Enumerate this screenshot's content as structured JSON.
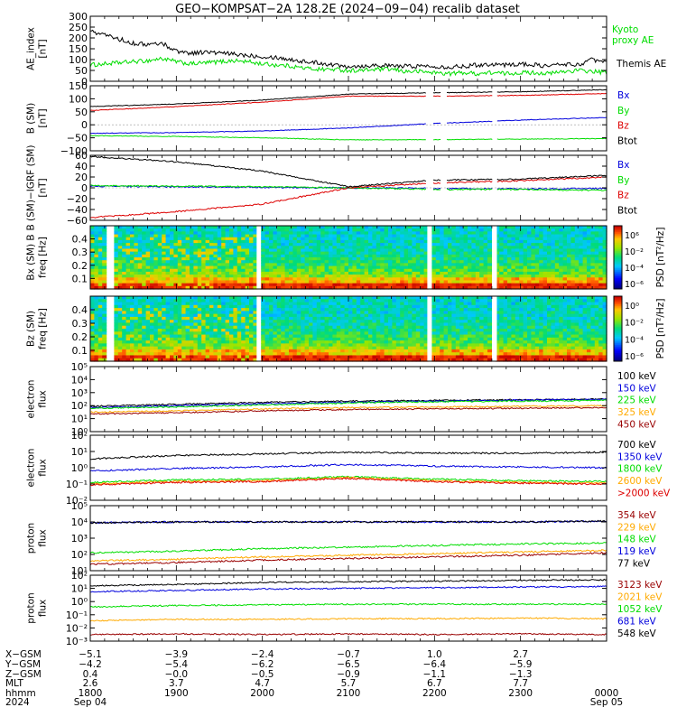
{
  "title": "GEO−KOMPSAT−2A 128.2E (2024−09−04) recalib dataset",
  "x_axis": {
    "row_labels": [
      "X−GSM",
      "Y−GSM",
      "Z−GSM",
      "MLT",
      "hhmm",
      "2024"
    ],
    "ticks": [
      {
        "t": 1800,
        "x_gsm": "−5.1",
        "y_gsm": "−4.2",
        "z_gsm": "0.4",
        "mlt": "2.6",
        "hhmm": "1800",
        "date": "Sep 04"
      },
      {
        "t": 1900,
        "x_gsm": "−3.9",
        "y_gsm": "−5.4",
        "z_gsm": "−0.0",
        "mlt": "3.7",
        "hhmm": "1900",
        "date": ""
      },
      {
        "t": 2000,
        "x_gsm": "−2.4",
        "y_gsm": "−6.2",
        "z_gsm": "−0.5",
        "mlt": "4.7",
        "hhmm": "2000",
        "date": ""
      },
      {
        "t": 2100,
        "x_gsm": "−0.7",
        "y_gsm": "−6.5",
        "z_gsm": "−0.9",
        "mlt": "5.7",
        "hhmm": "2100",
        "date": ""
      },
      {
        "t": 2200,
        "x_gsm": "1.0",
        "y_gsm": "−6.4",
        "z_gsm": "−1.1",
        "mlt": "6.7",
        "hhmm": "2200",
        "date": ""
      },
      {
        "t": 2300,
        "x_gsm": "2.7",
        "y_gsm": "−5.9",
        "z_gsm": "−1.3",
        "mlt": "7.7",
        "hhmm": "2300",
        "date": ""
      },
      {
        "t": 2400,
        "x_gsm": "",
        "y_gsm": "",
        "z_gsm": "",
        "mlt": "",
        "hhmm": "0000",
        "date": "Sep 05"
      }
    ]
  },
  "chart_data": [
    {
      "type": "line",
      "ylabel": "AE_index\n[nT]",
      "ylim": [
        0,
        300
      ],
      "yticks": [
        "0",
        "50",
        "100",
        "150",
        "200",
        "250",
        "300"
      ],
      "series": [
        {
          "name": "Kyoto\nproxy AE",
          "color": "#00dd00",
          "x": [
            1800,
            1810,
            1820,
            1830,
            1840,
            1850,
            1900,
            1910,
            1920,
            1930,
            1940,
            1950,
            2000,
            2010,
            2020,
            2030,
            2040,
            2050,
            2100,
            2110,
            2120,
            2130,
            2140,
            2150,
            2200,
            2210,
            2220,
            2230,
            2240,
            2250,
            2300,
            2310,
            2320,
            2330,
            2340,
            2350,
            2400
          ],
          "y": [
            75,
            80,
            85,
            90,
            95,
            105,
            90,
            80,
            85,
            90,
            95,
            90,
            80,
            75,
            70,
            60,
            55,
            55,
            50,
            50,
            55,
            55,
            45,
            45,
            40,
            35,
            40,
            35,
            40,
            35,
            40,
            40,
            35,
            45,
            50,
            45,
            40
          ]
        },
        {
          "name": "Themis AE",
          "color": "#000000",
          "x": [
            1800,
            1810,
            1820,
            1830,
            1840,
            1850,
            1900,
            1910,
            1920,
            1930,
            1940,
            1950,
            2000,
            2010,
            2020,
            2030,
            2040,
            2050,
            2100,
            2110,
            2120,
            2130,
            2140,
            2150,
            2200,
            2210,
            2220,
            2230,
            2240,
            2250,
            2300,
            2310,
            2320,
            2330,
            2340,
            2350,
            2400
          ],
          "y": [
            230,
            215,
            195,
            175,
            170,
            175,
            140,
            130,
            135,
            130,
            125,
            120,
            115,
            110,
            100,
            90,
            85,
            75,
            70,
            70,
            75,
            70,
            70,
            70,
            70,
            65,
            70,
            75,
            80,
            75,
            80,
            75,
            70,
            80,
            75,
            100,
            85
          ]
        }
      ]
    },
    {
      "type": "line",
      "ylabel": "B (SM)\n[nT]",
      "ylim": [
        -100,
        150
      ],
      "yticks": [
        "−100",
        "−50",
        "0",
        "50",
        "100",
        "150"
      ],
      "gaps": [
        [
          2155,
          2158
        ],
        [
          2205,
          2208
        ],
        [
          2241,
          2243
        ]
      ],
      "series": [
        {
          "name": "Bx",
          "color": "#0000dd",
          "x": [
            1800,
            1900,
            2000,
            2100,
            2200,
            2300,
            2400
          ],
          "y": [
            -33,
            -30,
            -24,
            -12,
            5,
            18,
            28
          ]
        },
        {
          "name": "By",
          "color": "#00dd00",
          "x": [
            1800,
            1900,
            2000,
            2100,
            2200,
            2300,
            2400
          ],
          "y": [
            -42,
            -45,
            -50,
            -58,
            -57,
            -55,
            -53
          ]
        },
        {
          "name": "Bz",
          "color": "#dd0000",
          "x": [
            1800,
            1900,
            2000,
            2100,
            2200,
            2300,
            2400
          ],
          "y": [
            55,
            70,
            87,
            110,
            110,
            113,
            120
          ]
        },
        {
          "name": "Btot",
          "color": "#000000",
          "x": [
            1800,
            1900,
            2000,
            2100,
            2200,
            2300,
            2400
          ],
          "y": [
            70,
            80,
            95,
            118,
            123,
            127,
            135
          ]
        }
      ]
    },
    {
      "type": "line",
      "ylabel": "B (SM)−IGRF (SM)\n[nT]",
      "ylim": [
        -60,
        60
      ],
      "yticks": [
        "−60",
        "−40",
        "−20",
        "0",
        "20",
        "40",
        "60"
      ],
      "gaps": [
        [
          2155,
          2158
        ],
        [
          2205,
          2208
        ],
        [
          2241,
          2243
        ]
      ],
      "series": [
        {
          "name": "Bx",
          "color": "#0000dd",
          "x": [
            1800,
            1900,
            2000,
            2100,
            2200,
            2300,
            2400
          ],
          "y": [
            3,
            2,
            1,
            0,
            -1,
            -2,
            -1
          ]
        },
        {
          "name": "By",
          "color": "#00dd00",
          "x": [
            1800,
            1900,
            2000,
            2100,
            2200,
            2300,
            2400
          ],
          "y": [
            4,
            3,
            2,
            0,
            -3,
            -3,
            -5
          ]
        },
        {
          "name": "Bz",
          "color": "#dd0000",
          "x": [
            1800,
            1900,
            2000,
            2100,
            2200,
            2300,
            2400
          ],
          "y": [
            -55,
            -44,
            -30,
            0,
            9,
            13,
            20
          ]
        },
        {
          "name": "Btot",
          "color": "#000000",
          "x": [
            1800,
            1900,
            2000,
            2100,
            2200,
            2300,
            2400
          ],
          "y": [
            58,
            48,
            31,
            2,
            14,
            16,
            23
          ]
        }
      ]
    },
    {
      "type": "heatmap",
      "ylabel": "Bx (SM) B\nfreq [Hz]",
      "ylim": [
        0.02,
        0.5
      ],
      "yticks": [
        "0.1",
        "0.2",
        "0.3",
        "0.4"
      ],
      "colorbar": {
        "label": "PSD [nT²/Hz]",
        "ticks": [
          "10⁶",
          "10⁻²",
          "10⁻⁴",
          "10⁻⁶"
        ]
      },
      "gaps": [
        [
          1812,
          1815
        ],
        [
          1956,
          1958
        ],
        [
          2155,
          2158
        ],
        [
          2241,
          2243
        ]
      ]
    },
    {
      "type": "heatmap",
      "ylabel": "Bz (SM)\nfreq [Hz]",
      "ylim": [
        0.02,
        0.5
      ],
      "yticks": [
        "0.1",
        "0.2",
        "0.3",
        "0.4"
      ],
      "colorbar": {
        "label": "PSD [nT²/Hz]",
        "ticks": [
          "10⁰",
          "10⁻²",
          "10⁻⁴",
          "10⁻⁶"
        ]
      },
      "gaps": [
        [
          1812,
          1815
        ],
        [
          1956,
          1958
        ],
        [
          2155,
          2158
        ],
        [
          2241,
          2243
        ]
      ]
    },
    {
      "type": "line",
      "log": true,
      "ylabel": "electron\nflux",
      "ylim_exp": [
        0,
        5
      ],
      "yticks": [
        "10⁰",
        "10¹",
        "10²",
        "10³",
        "10⁴",
        "10⁵"
      ],
      "series": [
        {
          "name": "100 keV",
          "color": "#000000",
          "x": [
            1800,
            1900,
            2000,
            2100,
            2200,
            2300,
            2400
          ],
          "y_exp": [
            1.95,
            2.1,
            2.25,
            2.35,
            2.4,
            2.45,
            2.5
          ]
        },
        {
          "name": "150 keV",
          "color": "#0000dd",
          "x": [
            1800,
            1900,
            2000,
            2100,
            2200,
            2300,
            2400
          ],
          "y_exp": [
            1.85,
            2.0,
            2.15,
            2.25,
            2.35,
            2.42,
            2.48
          ]
        },
        {
          "name": "225 keV",
          "color": "#00dd00",
          "x": [
            1800,
            1900,
            2000,
            2100,
            2200,
            2300,
            2400
          ],
          "y_exp": [
            1.8,
            1.9,
            2.05,
            2.2,
            2.3,
            2.35,
            2.4
          ]
        },
        {
          "name": "325 keV",
          "color": "#ffaa00",
          "x": [
            1800,
            1900,
            2000,
            2100,
            2200,
            2300,
            2400
          ],
          "y_exp": [
            1.5,
            1.6,
            1.75,
            1.85,
            1.9,
            1.95,
            2.0
          ]
        },
        {
          "name": "450 keV",
          "color": "#990000",
          "x": [
            1800,
            1900,
            2000,
            2100,
            2200,
            2300,
            2400
          ],
          "y_exp": [
            1.35,
            1.45,
            1.6,
            1.7,
            1.75,
            1.8,
            1.85
          ]
        }
      ]
    },
    {
      "type": "line",
      "log": true,
      "ylabel": "electron\nflux",
      "ylim_exp": [
        -2,
        2
      ],
      "yticks": [
        "10⁻²",
        "10⁻¹",
        "10⁰",
        "10¹",
        "10²"
      ],
      "series": [
        {
          "name": "700 keV",
          "color": "#000000",
          "x": [
            1800,
            1900,
            2000,
            2100,
            2200,
            2300,
            2400
          ],
          "y_exp": [
            0.55,
            0.75,
            0.85,
            0.95,
            0.9,
            0.9,
            0.95
          ]
        },
        {
          "name": "1350 keV",
          "color": "#0000dd",
          "x": [
            1800,
            1900,
            2000,
            2100,
            2200,
            2300,
            2400
          ],
          "y_exp": [
            -0.2,
            -0.05,
            0.05,
            0.2,
            0.1,
            0.05,
            0.0
          ]
        },
        {
          "name": "1800 keV",
          "color": "#00dd00",
          "x": [
            1800,
            1900,
            2000,
            2100,
            2200,
            2300,
            2400
          ],
          "y_exp": [
            -0.9,
            -0.75,
            -0.7,
            -0.55,
            -0.7,
            -0.8,
            -0.85
          ]
        },
        {
          "name": "2600 keV",
          "color": "#ffaa00",
          "x": [
            1800,
            1900,
            2000,
            2100,
            2200,
            2300,
            2400
          ],
          "y_exp": [
            -1.0,
            -0.85,
            -0.8,
            -0.6,
            -0.8,
            -0.9,
            -0.95
          ]
        },
        {
          "name": ">2000 keV",
          "color": "#dd0000",
          "x": [
            1800,
            1900,
            2000,
            2100,
            2200,
            2300,
            2400
          ],
          "y_exp": [
            -1.05,
            -0.9,
            -0.85,
            -0.65,
            -0.85,
            -0.95,
            -1.0
          ]
        }
      ]
    },
    {
      "type": "line",
      "log": true,
      "ylabel": "proton\nflux",
      "ylim_exp": [
        1,
        5
      ],
      "yticks": [
        "10¹",
        "10²",
        "10³",
        "10⁴",
        "10⁵"
      ],
      "series": [
        {
          "name": "354 keV",
          "color": "#990000",
          "x": [
            1800,
            1900,
            2000,
            2100,
            2200,
            2300,
            2400
          ],
          "y_exp": [
            1.4,
            1.5,
            1.65,
            1.75,
            1.85,
            1.95,
            2.1
          ]
        },
        {
          "name": "229 keV",
          "color": "#ffaa00",
          "x": [
            1800,
            1900,
            2000,
            2100,
            2200,
            2300,
            2400
          ],
          "y_exp": [
            1.6,
            1.7,
            1.85,
            1.95,
            2.05,
            2.15,
            2.25
          ]
        },
        {
          "name": "148 keV",
          "color": "#00dd00",
          "x": [
            1800,
            1900,
            2000,
            2100,
            2200,
            2300,
            2400
          ],
          "y_exp": [
            2.1,
            2.2,
            2.35,
            2.45,
            2.55,
            2.65,
            2.7
          ]
        },
        {
          "name": "119 keV",
          "color": "#0000dd",
          "x": [
            1800,
            1900,
            2000,
            2100,
            2200,
            2300,
            2400
          ],
          "y_exp": [
            3.95,
            4.0,
            4.0,
            4.0,
            4.0,
            4.0,
            4.05
          ]
        },
        {
          "name": "77 keV",
          "color": "#000000",
          "x": [
            1800,
            1900,
            2000,
            2100,
            2200,
            2300,
            2400
          ],
          "y_exp": [
            3.95,
            4.0,
            4.0,
            4.0,
            4.0,
            4.0,
            4.05
          ]
        }
      ]
    },
    {
      "type": "line",
      "log": true,
      "ylabel": "proton\nflux",
      "ylim_exp": [
        -3,
        2
      ],
      "yticks": [
        "10⁻³",
        "10⁻²",
        "10⁻¹",
        "10⁰",
        "10¹",
        "10²"
      ],
      "series": [
        {
          "name": "3123 keV",
          "color": "#990000",
          "x": [
            1800,
            1900,
            2000,
            2100,
            2200,
            2300,
            2400
          ],
          "y_exp": [
            -2.5,
            -2.45,
            -2.5,
            -2.45,
            -2.5,
            -2.45,
            -2.5
          ]
        },
        {
          "name": "2021 keV",
          "color": "#ffaa00",
          "x": [
            1800,
            1900,
            2000,
            2100,
            2200,
            2300,
            2400
          ],
          "y_exp": [
            -1.45,
            -1.35,
            -1.35,
            -1.3,
            -1.3,
            -1.25,
            -1.3
          ]
        },
        {
          "name": "1052 keV",
          "color": "#00dd00",
          "x": [
            1800,
            1900,
            2000,
            2100,
            2200,
            2300,
            2400
          ],
          "y_exp": [
            -0.4,
            -0.3,
            -0.25,
            -0.2,
            -0.2,
            -0.2,
            -0.2
          ]
        },
        {
          "name": "681 keV",
          "color": "#0000dd",
          "x": [
            1800,
            1900,
            2000,
            2100,
            2200,
            2300,
            2400
          ],
          "y_exp": [
            0.75,
            0.85,
            0.95,
            1.0,
            1.05,
            1.1,
            1.15
          ]
        },
        {
          "name": "548 keV",
          "color": "#000000",
          "x": [
            1800,
            1900,
            2000,
            2100,
            2200,
            2300,
            2400
          ],
          "y_exp": [
            1.2,
            1.3,
            1.45,
            1.5,
            1.55,
            1.6,
            1.65
          ]
        }
      ]
    }
  ]
}
